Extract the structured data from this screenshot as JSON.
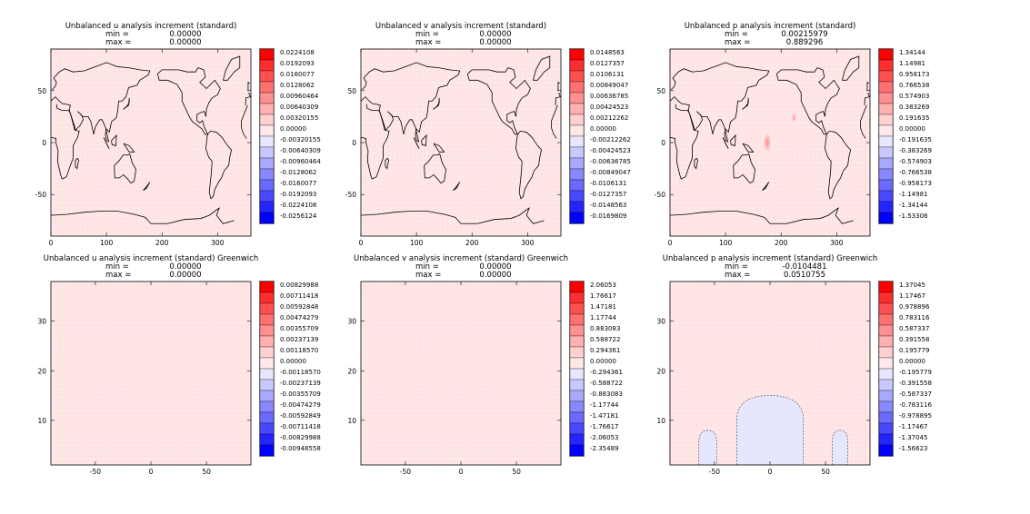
{
  "chart_data": [
    {
      "type": "heatmap",
      "title": "Unbalanced u analysis increment (standard)",
      "stats": {
        "min_label": "min =",
        "min": "0.00000",
        "max_label": "max =",
        "max": "0.00000"
      },
      "x_ticks": [
        "0",
        "100",
        "200",
        "300"
      ],
      "x_values": [
        0,
        100,
        200,
        300
      ],
      "xlim": [
        0,
        360
      ],
      "y_ticks": [
        "50",
        "0",
        "-50"
      ],
      "y_values": [
        50,
        0,
        -50
      ],
      "ylim": [
        -90,
        90
      ],
      "map": true,
      "colorbar_labels": [
        "0.0224108",
        "0.0192093",
        "0.0160077",
        "0.0128062",
        "0.00960464",
        "0.00640309",
        "0.00320155",
        "0.00000",
        "-0.00320155",
        "-0.00640309",
        "-0.00960464",
        "-0.0128062",
        "-0.0160077",
        "-0.0192093",
        "-0.0224108",
        "-0.0256124"
      ],
      "field": "uniform"
    },
    {
      "type": "heatmap",
      "title": "Unbalanced v analysis increment (standard)",
      "stats": {
        "min_label": "min =",
        "min": "0.00000",
        "max_label": "max =",
        "max": "0.00000"
      },
      "x_ticks": [
        "0",
        "100",
        "200",
        "300"
      ],
      "x_values": [
        0,
        100,
        200,
        300
      ],
      "xlim": [
        0,
        360
      ],
      "y_ticks": [
        "50",
        "0",
        "-50"
      ],
      "y_values": [
        50,
        0,
        -50
      ],
      "ylim": [
        -90,
        90
      ],
      "map": true,
      "colorbar_labels": [
        "0.0148563",
        "0.0127357",
        "0.0106131",
        "0.00849047",
        "0.00636785",
        "0.00424523",
        "0.00212262",
        "0.00000",
        "-0.00212262",
        "-0.00424523",
        "-0.00636785",
        "-0.00849047",
        "-0.0106131",
        "-0.0127357",
        "-0.0148563",
        "-0.0169809"
      ],
      "field": "uniform"
    },
    {
      "type": "heatmap",
      "title": "Unbalanced p analysis increment (standard)",
      "stats": {
        "min_label": "min =",
        "min": "0.00215979",
        "max_label": "max =",
        "max": "0.889296"
      },
      "x_ticks": [
        "0",
        "100",
        "200",
        "300"
      ],
      "x_values": [
        0,
        100,
        200,
        300
      ],
      "xlim": [
        0,
        360
      ],
      "y_ticks": [
        "50",
        "0",
        "-50"
      ],
      "y_values": [
        50,
        0,
        -50
      ],
      "ylim": [
        -90,
        90
      ],
      "map": true,
      "colorbar_labels": [
        "1.34144",
        "1.14981",
        "0.958173",
        "0.766538",
        "0.574903",
        "0.383269",
        "0.191635",
        "0.00000",
        "-0.191635",
        "-0.383269",
        "-0.574903",
        "-0.766538",
        "-0.958173",
        "-1.14981",
        "-1.34144",
        "-1.53308"
      ],
      "field": "spots",
      "spots": [
        {
          "lon": 175,
          "lat": 0,
          "rlon": 6,
          "rlat": 8
        },
        {
          "lon": 223,
          "lat": 24,
          "rlon": 3,
          "rlat": 4
        }
      ]
    },
    {
      "type": "heatmap",
      "title": "Unbalanced u analysis increment (standard) Greenwich",
      "stats": {
        "min_label": "min =",
        "min": "0.00000",
        "max_label": "max =",
        "max": "0.00000"
      },
      "x_ticks": [
        "-50",
        "0",
        "50"
      ],
      "x_values": [
        -50,
        0,
        50
      ],
      "xlim": [
        -90,
        90
      ],
      "y_ticks": [
        "30",
        "20",
        "10"
      ],
      "y_values": [
        30,
        20,
        10
      ],
      "ylim": [
        1,
        38
      ],
      "map": false,
      "colorbar_labels": [
        "0.00829988",
        "0.00711418",
        "0.00592848",
        "0.00474279",
        "0.00355709",
        "0.00237139",
        "0.00118570",
        "0.00000",
        "-0.00118570",
        "-0.00237139",
        "-0.00355709",
        "-0.00474279",
        "-0.00592849",
        "-0.00711418",
        "-0.00829988",
        "-0.00948558"
      ],
      "field": "uniform"
    },
    {
      "type": "heatmap",
      "title": "Unbalanced v analysis increment (standard) Greenwich",
      "stats": {
        "min_label": "min =",
        "min": "0.00000",
        "max_label": "max =",
        "max": "0.00000"
      },
      "x_ticks": [
        "-50",
        "0",
        "50"
      ],
      "x_values": [
        -50,
        0,
        50
      ],
      "xlim": [
        -90,
        90
      ],
      "y_ticks": [
        "30",
        "20",
        "10"
      ],
      "y_values": [
        30,
        20,
        10
      ],
      "ylim": [
        1,
        38
      ],
      "map": false,
      "colorbar_labels": [
        "2.06053",
        "1.76617",
        "1.47181",
        "1.17744",
        "0.883083",
        "0.588722",
        "0.294361",
        "0.00000",
        "-0.294361",
        "-0.588722",
        "-0.883083",
        "-1.17744",
        "-1.47181",
        "-1.76617",
        "-2.06053",
        "-2.35489"
      ],
      "field": "uniform"
    },
    {
      "type": "heatmap",
      "title": "Unbalanced p analysis increment (standard) Greenwich",
      "stats": {
        "min_label": "min =",
        "min": "-0.0104481",
        "max_label": "max =",
        "max": "0.0510755"
      },
      "x_ticks": [
        "-50",
        "0",
        "50"
      ],
      "x_values": [
        -50,
        0,
        50
      ],
      "xlim": [
        -90,
        90
      ],
      "y_ticks": [
        "30",
        "20",
        "10"
      ],
      "y_values": [
        30,
        20,
        10
      ],
      "ylim": [
        1,
        38
      ],
      "map": false,
      "colorbar_labels": [
        "1.37045",
        "1.17467",
        "0.978896",
        "0.783116",
        "0.587337",
        "0.391558",
        "0.195779",
        "0.00000",
        "-0.195779",
        "-0.391558",
        "-0.587337",
        "-0.783116",
        "-0.978895",
        "-1.17467",
        "-1.37045",
        "-1.56623"
      ],
      "field": "blobs",
      "blobs": [
        {
          "center": 0,
          "halfwidth": 30,
          "top": 15
        },
        {
          "center": -56,
          "halfwidth": 8,
          "top": 8
        },
        {
          "center": 63,
          "halfwidth": 7,
          "top": 8
        }
      ]
    }
  ],
  "colors": {
    "colorbar": [
      "#ff0000",
      "#ff2e2e",
      "#ff5050",
      "#ff7070",
      "#ff9090",
      "#ffb0b0",
      "#ffd0d0",
      "#ffe8e8",
      "#e6e6ff",
      "#c8c8ff",
      "#a8a8ff",
      "#8888ff",
      "#6a6aff",
      "#4848ff",
      "#2424ff",
      "#0000ff"
    ],
    "field_base": "#ffe8e8",
    "field_spot": "#ffc8c8",
    "field_spot_core": "#ffa0a0",
    "field_negative": "#e6e6ff",
    "coast": "#000000"
  }
}
